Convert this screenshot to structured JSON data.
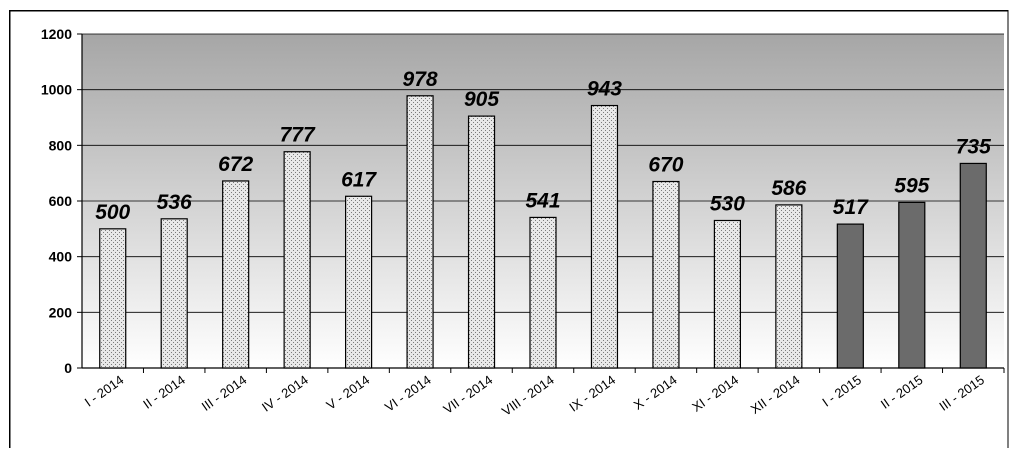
{
  "chart_data": {
    "type": "bar",
    "categories": [
      "I - 2014",
      "II - 2014",
      "III - 2014",
      "IV - 2014",
      "V - 2014",
      "VI - 2014",
      "VII - 2014",
      "VIII - 2014",
      "IX - 2014",
      "X - 2014",
      "XI - 2014",
      "XII - 2014",
      "I - 2015",
      "II - 2015",
      "III - 2015"
    ],
    "values": [
      500,
      536,
      672,
      777,
      617,
      978,
      905,
      541,
      943,
      670,
      530,
      586,
      517,
      595,
      735
    ],
    "bar_styles": [
      "dotted",
      "dotted",
      "dotted",
      "dotted",
      "dotted",
      "dotted",
      "dotted",
      "dotted",
      "dotted",
      "dotted",
      "dotted",
      "dotted",
      "solid",
      "solid",
      "solid"
    ],
    "title": "",
    "xlabel": "",
    "ylabel": "",
    "ylim": [
      0,
      1200
    ],
    "yticks": [
      0,
      200,
      400,
      600,
      800,
      1000,
      1200
    ],
    "grid": true,
    "legend": "none",
    "data_labels": true,
    "colors": {
      "dotted_bar_fill": "#e6e6e6",
      "solid_bar_fill": "#6b6b6b",
      "bar_stroke": "#000000",
      "plot_top": "#a6a6a6",
      "plot_bottom": "#ffffff",
      "gridline": "#000000"
    }
  }
}
